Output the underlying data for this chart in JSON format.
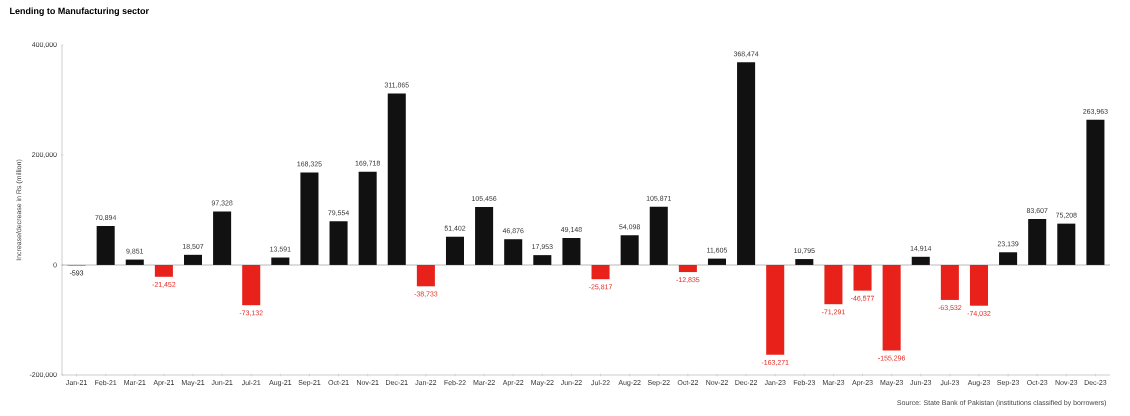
{
  "chart_data": {
    "type": "bar",
    "title": "Lending to Manufacturing sector",
    "ylabel": "Increase/decrease in Rs (million)",
    "categories": [
      "Jan-21",
      "Feb-21",
      "Mar-21",
      "Apr-21",
      "May-21",
      "Jun-21",
      "Jul-21",
      "Aug-21",
      "Sep-21",
      "Oct-21",
      "Nov-21",
      "Dec-21",
      "Jan-22",
      "Feb-22",
      "Mar-22",
      "Apr-22",
      "May-22",
      "Jun-22",
      "Jul-22",
      "Aug-22",
      "Sep-22",
      "Oct-22",
      "Nov-22",
      "Dec-22",
      "Jan-23",
      "Feb-23",
      "Mar-23",
      "Apr-23",
      "May-23",
      "Jun-23",
      "Jul-23",
      "Aug-23",
      "Sep-23",
      "Oct-23",
      "Nov-23",
      "Dec-23"
    ],
    "values": [
      -593,
      70894,
      9851,
      -21452,
      18507,
      97328,
      -73132,
      13591,
      168325,
      79554,
      169718,
      311865,
      -38733,
      51402,
      105456,
      46876,
      17953,
      49148,
      -25817,
      54098,
      105871,
      -12835,
      11605,
      368474,
      -163271,
      10795,
      -71291,
      -46577,
      -155296,
      14914,
      -63532,
      -74032,
      23139,
      83607,
      75208,
      263963
    ],
    "value_labels": [
      "-593",
      "70,894",
      "9,851",
      "-21,452",
      "18,507",
      "97,328",
      "-73,132",
      "13,591",
      "168,325",
      "79,554",
      "169,718",
      "311,865",
      "-38,733",
      "51,402",
      "105,456",
      "46,876",
      "17,953",
      "49,148",
      "-25,817",
      "54,098",
      "105,871",
      "-12,835",
      "11,605",
      "368,474",
      "-163,271",
      "10,795",
      "-71,291",
      "-46,577",
      "-155,296",
      "14,914",
      "-63,532",
      "-74,032",
      "23,139",
      "83,607",
      "75,208",
      "263,963"
    ],
    "colors": [
      "#111111",
      "#111111",
      "#111111",
      "#e8221b",
      "#111111",
      "#111111",
      "#e8221b",
      "#111111",
      "#111111",
      "#111111",
      "#111111",
      "#111111",
      "#e8221b",
      "#111111",
      "#111111",
      "#111111",
      "#111111",
      "#111111",
      "#e8221b",
      "#111111",
      "#111111",
      "#e8221b",
      "#111111",
      "#111111",
      "#e8221b",
      "#111111",
      "#e8221b",
      "#e8221b",
      "#e8221b",
      "#111111",
      "#e8221b",
      "#e8221b",
      "#111111",
      "#111111",
      "#111111",
      "#111111"
    ],
    "ylim": [
      -200000,
      400000
    ],
    "yticks": [
      {
        "value": -200000,
        "label": "-200,000"
      },
      {
        "value": 0,
        "label": "0"
      },
      {
        "value": 200000,
        "label": "200,000"
      },
      {
        "value": 400000,
        "label": "400,000"
      }
    ],
    "annotations": [
      "Source: State Bank of Pakistan (institutions classified by borrowers)"
    ]
  }
}
